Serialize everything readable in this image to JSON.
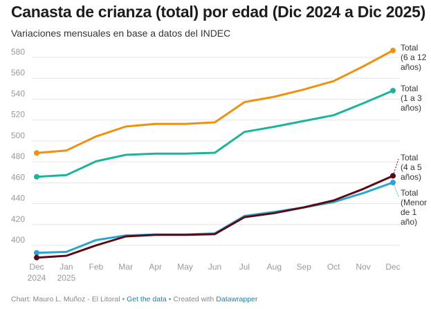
{
  "header": {
    "title": "Canasta de crianza (total) por edad (Dic 2024 a Dic 2025)",
    "subtitle": "Variaciones mensuales en base a datos del INDEC"
  },
  "footer": {
    "credit": "Chart: Mauro L. Muñoz - El Litoral",
    "separator": " • ",
    "get_data_label": "Get the data",
    "created_with": "Created with ",
    "datawrapper_label": "Datawrapper"
  },
  "chart_data": {
    "type": "line",
    "title": "Canasta de crianza (total) por edad (Dic 2024 a Dic 2025)",
    "subtitle": "Variaciones mensuales en base a datos del INDEC",
    "xlabel": "",
    "ylabel": "",
    "x": [
      [
        "Dec",
        "2024"
      ],
      [
        "Jan",
        "2025"
      ],
      [
        "Feb"
      ],
      [
        "Mar"
      ],
      [
        "Apr"
      ],
      [
        "May"
      ],
      [
        "Jun"
      ],
      [
        "Jul"
      ],
      [
        "Aug"
      ],
      [
        "Sep"
      ],
      [
        "Oct"
      ],
      [
        "Nov"
      ],
      [
        "Dec"
      ]
    ],
    "ylim": [
      386,
      590
    ],
    "yticks": [
      400,
      420,
      440,
      460,
      480,
      500,
      520,
      540,
      560,
      580
    ],
    "grid": true,
    "legend": "line-end labels (right)",
    "series": [
      {
        "name": "Total (6 a 12 años)",
        "label_lines": [
          "Total",
          "(6 a 12",
          "años)"
        ],
        "color": "#f0900f",
        "values": [
          488.5,
          490.9,
          504.3,
          513.8,
          516.3,
          516.3,
          517.8,
          537.2,
          542.3,
          549.3,
          557.3,
          571.4,
          586.6
        ]
      },
      {
        "name": "Total (1 a 3 años)",
        "label_lines": [
          "Total",
          "(1 a 3",
          "años)"
        ],
        "color": "#1cb39b",
        "values": [
          465.7,
          467.3,
          480.5,
          486.7,
          487.8,
          487.8,
          488.7,
          508.7,
          513.6,
          519.1,
          524.6,
          536.1,
          548.2
        ]
      },
      {
        "name": "Total (4 a 5 años)",
        "label_lines": [
          "Total",
          "(4 a 5",
          "años)"
        ],
        "color": "#5a0a14",
        "values": [
          388.3,
          390.1,
          400.0,
          408.6,
          410.1,
          410.1,
          410.8,
          427.1,
          430.9,
          436.4,
          443.0,
          454.1,
          466.6
        ]
      },
      {
        "name": "Total (Menor de 1 año)",
        "label_lines": [
          "Total",
          "(Menor",
          "de 1",
          "año)"
        ],
        "color": "#2aa5d1",
        "values": [
          392.9,
          393.8,
          405.1,
          409.5,
          410.4,
          410.4,
          411.5,
          428.2,
          432.0,
          436.4,
          441.5,
          450.1,
          460.2
        ]
      }
    ]
  }
}
